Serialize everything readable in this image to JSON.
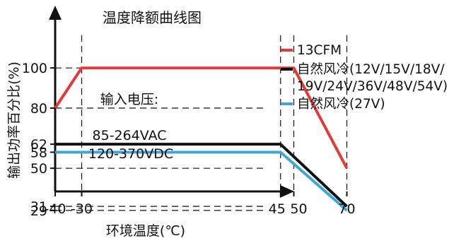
{
  "colors": {
    "13cfm": "#e53935",
    "natural_12_54": "#111111",
    "natural_27": "#3ea7d6",
    "axis": "#111111",
    "grid": "#111111"
  },
  "chart_data": {
    "type": "line",
    "title": "温度降额曲线图",
    "xlabel": "环境温度(℃)",
    "ylabel": "输出功率百分比(%)",
    "xlim": [
      -40,
      75
    ],
    "ylim": [
      20,
      110
    ],
    "x_ticks": [
      -40,
      -30,
      45,
      50,
      70
    ],
    "y_ticks": [
      100,
      80,
      62,
      58,
      50,
      31,
      29
    ],
    "grid": "dashed",
    "legend_position": "right",
    "series": [
      {
        "name": "13CFM",
        "color": "#e53935",
        "points": [
          [
            -40,
            80
          ],
          [
            -30,
            100
          ],
          [
            50,
            100
          ],
          [
            70,
            50
          ]
        ]
      },
      {
        "name": "自然风冷(12V/15V/18V/19V/24V/36V/48V/54V)",
        "color": "#111111",
        "points": [
          [
            -40,
            62
          ],
          [
            45,
            62
          ],
          [
            70,
            31
          ]
        ]
      },
      {
        "name": "自然风冷(27V)",
        "color": "#3ea7d6",
        "points": [
          [
            -40,
            58
          ],
          [
            45,
            58
          ],
          [
            70,
            29
          ]
        ]
      }
    ],
    "annotations": [
      "输入电压:",
      "85-264VAC",
      "120-370VDC"
    ]
  },
  "legend": {
    "item1": "13CFM",
    "item2_line1": "自然风冷(12V/15V/18V/",
    "item2_line2": "19V/24V/36V/48V/54V)",
    "item3": "自然风冷(27V)"
  }
}
